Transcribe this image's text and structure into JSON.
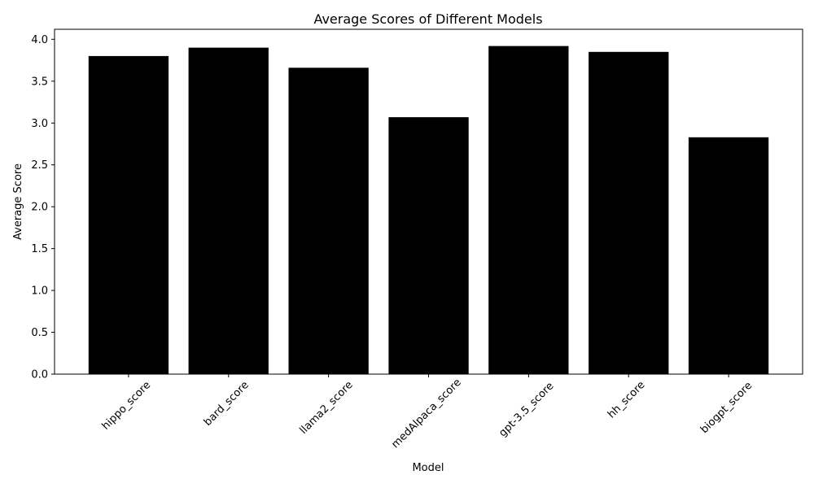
{
  "figure": {
    "background": "#ffffff"
  },
  "chart_data": {
    "type": "bar",
    "title": "Average Scores of Different Models",
    "xlabel": "Model",
    "ylabel": "Average Score",
    "categories": [
      "hippo_score",
      "bard_score",
      "llama2_score",
      "medAlpaca_score",
      "gpt-3.5_score",
      "hh_score",
      "biogpt_score"
    ],
    "values": [
      3.8,
      3.9,
      3.66,
      3.07,
      3.92,
      3.85,
      2.83
    ],
    "ylim": [
      0,
      4.12
    ],
    "yticks": [
      0.0,
      0.5,
      1.0,
      1.5,
      2.0,
      2.5,
      3.0,
      3.5,
      4.0
    ],
    "ytick_decimals": 1,
    "x_tick_rotation": 45,
    "bar_width_fraction": 0.8,
    "bar_color": "#000000",
    "axis_color": "#000000",
    "grid": false,
    "legend": false
  }
}
